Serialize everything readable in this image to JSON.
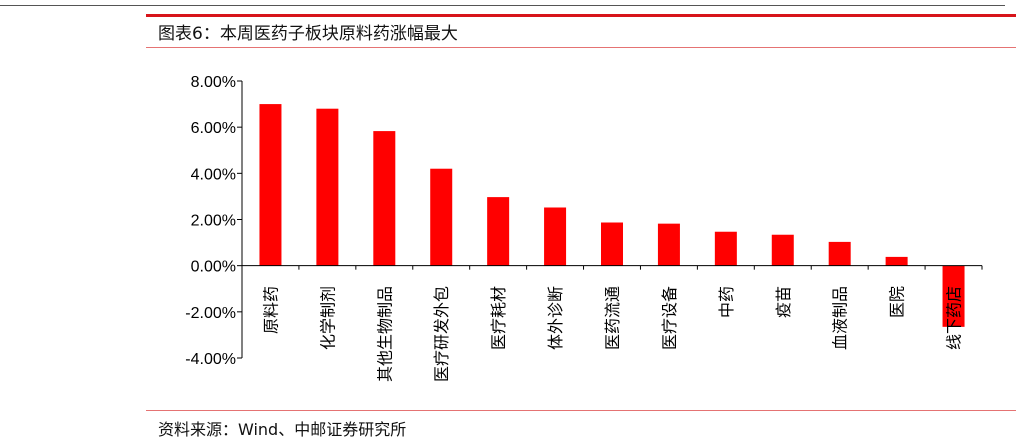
{
  "title": "图表6：本周医药子板块原料药涨幅最大",
  "source": "资料来源：Wind、中邮证券研究所",
  "chart_data": {
    "type": "bar",
    "title": "",
    "xlabel": "",
    "ylabel": "",
    "categories": [
      "原料药",
      "化学制剂",
      "其他生物制品",
      "医疗研发外包",
      "医疗耗材",
      "体外诊断",
      "医药流通",
      "医疗设备",
      "中药",
      "疫苗",
      "血液制品",
      "医院",
      "线下药店"
    ],
    "values": [
      7.0,
      6.8,
      5.83,
      4.2,
      2.97,
      2.52,
      1.87,
      1.82,
      1.47,
      1.34,
      1.03,
      0.38,
      -2.65
    ],
    "unit": "%",
    "ylim": [
      -4,
      8
    ],
    "yticks": [
      "-4.00%",
      "-2.00%",
      "0.00%",
      "2.00%",
      "4.00%",
      "6.00%",
      "8.00%"
    ],
    "grid": false,
    "bar_color": "#ff0000"
  }
}
